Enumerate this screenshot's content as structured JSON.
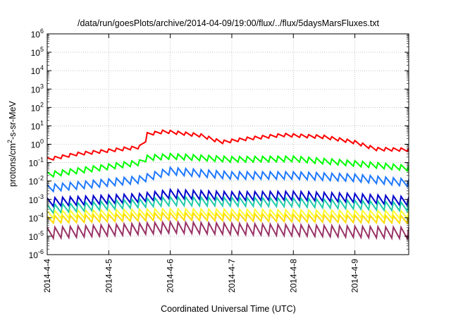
{
  "chart_data": {
    "type": "line",
    "title": "/data/run/goesPlots/archive/2014-04-09/19:00/flux/../flux/5daysMarsFluxes.txt",
    "xlabel": "Coordinated Universal Time (UTC)",
    "ylabel_parts": [
      "protons/cm",
      "2",
      "-s-sr-MeV"
    ],
    "xlim": [
      "2014-04-04",
      "2014-04-09 21:00"
    ],
    "ylim": [
      1e-06,
      1000000.0
    ],
    "yscale": "log",
    "grid": true,
    "legend": "none",
    "x_ticks": [
      "2014-4-4",
      "2014-4-5",
      "2014-4-6",
      "2014-4-7",
      "2014-4-8",
      "2014-4-9"
    ],
    "y_ticks": [
      {
        "base": "10",
        "exp": "-6"
      },
      {
        "base": "10",
        "exp": "-5"
      },
      {
        "base": "10",
        "exp": "-4"
      },
      {
        "base": "10",
        "exp": "-3"
      },
      {
        "base": "10",
        "exp": "-2"
      },
      {
        "base": "10",
        "exp": "-1"
      },
      {
        "base": "10",
        "exp": "0"
      },
      {
        "base": "10",
        "exp": "1"
      },
      {
        "base": "10",
        "exp": "2"
      },
      {
        "base": "10",
        "exp": "3"
      },
      {
        "base": "10",
        "exp": "4"
      },
      {
        "base": "10",
        "exp": "5"
      },
      {
        "base": "10",
        "exp": "6"
      }
    ],
    "series_style": [
      {
        "color": "#ff0000",
        "anchors": [
          [
            "2014-04-04 00:00",
            0.15
          ],
          [
            "2014-04-04 12:00",
            0.3
          ],
          [
            "2014-04-05 00:00",
            0.45
          ],
          [
            "2014-04-05 12:00",
            0.7
          ],
          [
            "2014-04-05 14:00",
            1.0
          ],
          [
            "2014-04-05 15:00",
            3.5
          ],
          [
            "2014-04-05 22:00",
            5.0
          ],
          [
            "2014-04-06 12:00",
            3.0
          ],
          [
            "2014-04-06 20:00",
            1.3
          ],
          [
            "2014-04-07 06:00",
            2.0
          ],
          [
            "2014-04-07 20:00",
            3.2
          ],
          [
            "2014-04-08 12:00",
            2.5
          ],
          [
            "2014-04-09 00:00",
            1.3
          ],
          [
            "2014-04-09 08:00",
            0.55
          ],
          [
            "2014-04-09 21:00",
            0.5
          ]
        ],
        "amp": 1.5
      },
      {
        "color": "#00ff00",
        "anchors": [
          [
            "2014-04-04 00:00",
            0.022
          ],
          [
            "2014-04-05 12:00",
            0.1
          ],
          [
            "2014-04-05 15:00",
            0.18
          ],
          [
            "2014-04-06 00:00",
            0.22
          ],
          [
            "2014-04-07 00:00",
            0.15
          ],
          [
            "2014-04-08 00:00",
            0.16
          ],
          [
            "2014-04-09 00:00",
            0.09
          ],
          [
            "2014-04-09 21:00",
            0.05
          ]
        ],
        "amp": 2.0
      },
      {
        "color": "#1e78ff",
        "anchors": [
          [
            "2014-04-04 00:00",
            0.004
          ],
          [
            "2014-04-05 12:00",
            0.012
          ],
          [
            "2014-04-06 00:00",
            0.035
          ],
          [
            "2014-04-07 00:00",
            0.02
          ],
          [
            "2014-04-08 00:00",
            0.02
          ],
          [
            "2014-04-09 00:00",
            0.015
          ],
          [
            "2014-04-09 21:00",
            0.008
          ]
        ],
        "amp": 2.5
      },
      {
        "color": "#0000cc",
        "anchors": [
          [
            "2014-04-04 00:00",
            0.0007
          ],
          [
            "2014-04-05 12:00",
            0.0012
          ],
          [
            "2014-04-06 00:00",
            0.002
          ],
          [
            "2014-04-07 00:00",
            0.0015
          ],
          [
            "2014-04-08 00:00",
            0.0016
          ],
          [
            "2014-04-09 00:00",
            0.0012
          ],
          [
            "2014-04-09 21:00",
            0.0008
          ]
        ],
        "amp": 3.0
      },
      {
        "color": "#22ccaa",
        "anchors": [
          [
            "2014-04-04 00:00",
            0.0003
          ],
          [
            "2014-04-06 00:00",
            0.0008
          ],
          [
            "2014-04-08 00:00",
            0.0007
          ],
          [
            "2014-04-09 21:00",
            0.0004
          ]
        ],
        "amp": 3.0
      },
      {
        "color": "#ffff33",
        "anchors": [
          [
            "2014-04-04 00:00",
            0.00015
          ],
          [
            "2014-04-06 00:00",
            0.0002
          ],
          [
            "2014-04-09 21:00",
            0.00015
          ]
        ],
        "amp": 2.5
      },
      {
        "color": "#ffdd00",
        "anchors": [
          [
            "2014-04-04 00:00",
            8e-05
          ],
          [
            "2014-04-06 00:00",
            0.00012
          ],
          [
            "2014-04-09 21:00",
            8e-05
          ]
        ],
        "amp": 2.5
      },
      {
        "color": "#993366",
        "anchors": [
          [
            "2014-04-04 00:00",
            1.5e-05
          ],
          [
            "2014-04-06 00:00",
            3e-05
          ],
          [
            "2014-04-09 21:00",
            1.5e-05
          ]
        ],
        "amp": 4.0
      }
    ],
    "sawtooth_period_hours": 3
  }
}
